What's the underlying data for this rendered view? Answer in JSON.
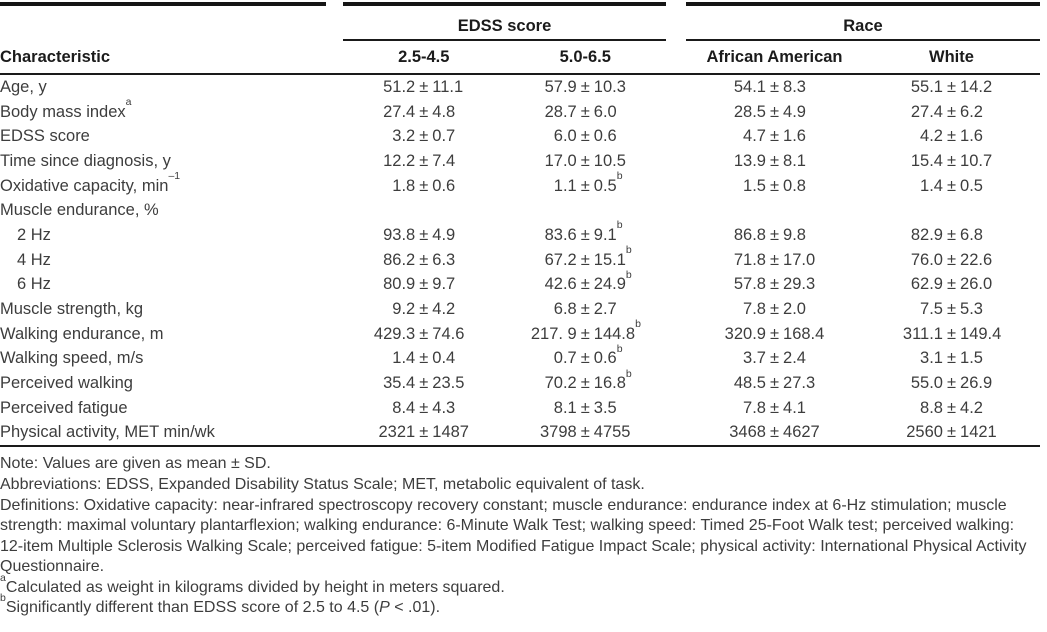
{
  "table": {
    "group_headers": [
      {
        "label": "EDSS score"
      },
      {
        "label": "Race"
      }
    ],
    "columns": [
      "Characteristic",
      "2.5-4.5",
      "5.0-6.5",
      "African American",
      "White"
    ],
    "rows": [
      {
        "label": "Age, y",
        "indent": false,
        "values": [
          "51.2 ± 11.1",
          "57.9 ± 10.3",
          "54.1 ± 8.3",
          "55.1 ± 14.2"
        ]
      },
      {
        "label": "Body mass index^a",
        "indent": false,
        "values": [
          "27.4 ± 4.8",
          "28.7 ± 6.0",
          "28.5 ± 4.9",
          "27.4 ± 6.2"
        ]
      },
      {
        "label": "EDSS score",
        "indent": false,
        "values": [
          "3.2 ± 0.7",
          "6.0 ± 0.6",
          "4.7 ± 1.6",
          "4.2 ± 1.6"
        ]
      },
      {
        "label": "Time since diagnosis, y",
        "indent": false,
        "values": [
          "12.2 ± 7.4",
          "17.0 ± 10.5",
          "13.9 ± 8.1",
          "15.4 ± 10.7"
        ]
      },
      {
        "label": "Oxidative capacity, min^–1",
        "indent": false,
        "values": [
          "1.8 ± 0.6",
          "1.1 ± 0.5^b",
          "1.5 ± 0.8",
          "1.4 ± 0.5"
        ]
      },
      {
        "label": "Muscle endurance, %",
        "indent": false,
        "values": [
          "",
          "",
          "",
          ""
        ]
      },
      {
        "label": "2 Hz",
        "indent": true,
        "values": [
          "93.8 ± 4.9",
          "83.6 ± 9.1^b",
          "86.8 ± 9.8",
          "82.9 ± 6.8"
        ]
      },
      {
        "label": "4 Hz",
        "indent": true,
        "values": [
          "86.2 ± 6.3",
          "67.2 ± 15.1^b",
          "71.8 ± 17.0",
          "76.0 ± 22.6"
        ]
      },
      {
        "label": "6 Hz",
        "indent": true,
        "values": [
          "80.9 ± 9.7",
          "42.6 ± 24.9^b",
          "57.8 ± 29.3",
          "62.9 ± 26.0"
        ]
      },
      {
        "label": "Muscle strength, kg",
        "indent": false,
        "values": [
          "9.2 ± 4.2",
          "6.8 ± 2.7",
          "7.8 ± 2.0",
          "7.5 ± 5.3"
        ]
      },
      {
        "label": "Walking endurance, m",
        "indent": false,
        "values": [
          "429.3 ± 74.6",
          "217. 9 ± 144.8^b",
          "320.9 ± 168.4",
          "311.1 ± 149.4"
        ]
      },
      {
        "label": "Walking speed, m/s",
        "indent": false,
        "values": [
          "1.4 ± 0.4",
          "0.7 ± 0.6^b",
          "3.7 ± 2.4",
          "3.1 ± 1.5"
        ]
      },
      {
        "label": "Perceived walking",
        "indent": false,
        "values": [
          "35.4 ± 23.5",
          "70.2 ± 16.8^b",
          "48.5 ± 27.3",
          "55.0 ± 26.9"
        ]
      },
      {
        "label": "Perceived fatigue",
        "indent": false,
        "values": [
          "8.4 ± 4.3",
          "8.1 ± 3.5",
          "7.8 ± 4.1",
          "8.8 ± 4.2"
        ]
      },
      {
        "label": "Physical activity, MET min/wk",
        "indent": false,
        "values": [
          "2321 ± 1487",
          "3798 ± 4755",
          "3468 ± 4627",
          "2560 ± 1421"
        ]
      }
    ]
  },
  "footnotes": [
    {
      "parts": [
        {
          "t": "Note: Values are given as mean ± SD."
        }
      ]
    },
    {
      "parts": [
        {
          "t": "Abbreviations: EDSS, Expanded Disability Status Scale; MET, metabolic equivalent of task."
        }
      ]
    },
    {
      "parts": [
        {
          "t": "Definitions: Oxidative capacity: near-infrared spectroscopy recovery constant; muscle endurance: endurance index at 6-Hz stimulation; muscle strength: maximal voluntary plantarflexion; walking endurance: 6-Minute Walk Test; walking speed: Timed 25-Foot Walk test; perceived walking: 12-item Multiple Sclerosis Walking Scale; perceived fatigue: 5-item Modified Fatigue Impact Scale; physical activity: International Physical Activity Questionnaire."
        }
      ]
    },
    {
      "parts": [
        {
          "t": "a",
          "sup": true
        },
        {
          "t": "Calculated as weight in kilograms divided by height in meters squared."
        }
      ]
    },
    {
      "parts": [
        {
          "t": "b",
          "sup": true
        },
        {
          "t": "Significantly different than EDSS score of 2.5 to 4.5 ("
        },
        {
          "t": "P",
          "italic": true
        },
        {
          "t": " < .01)."
        }
      ]
    }
  ]
}
